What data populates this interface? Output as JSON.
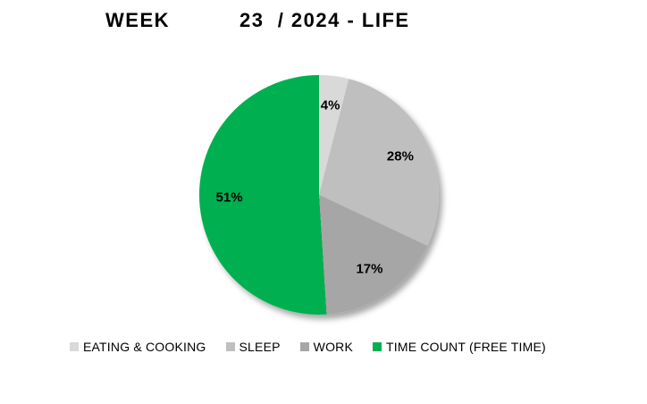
{
  "title": {
    "left": "WEEK",
    "right": "23  / 2024 - LIFE"
  },
  "colors": {
    "background": "#FFFFFF",
    "text": "#000000"
  },
  "chart_data": {
    "type": "pie",
    "title": "WEEK 23 / 2024 - LIFE",
    "start_angle_deg": 0,
    "direction": "clockwise",
    "legend_position": "bottom",
    "slices": [
      {
        "label": "EATING & COOKING",
        "value": 4,
        "percent_label": "4%",
        "color": "#D9D9D9"
      },
      {
        "label": "SLEEP",
        "value": 28,
        "percent_label": "28%",
        "color": "#BFBFBF"
      },
      {
        "label": "WORK",
        "value": 17,
        "percent_label": "17%",
        "color": "#A6A6A6"
      },
      {
        "label": "TIME COUNT (FREE TIME)",
        "value": 51,
        "percent_label": "51%",
        "color": "#00B050"
      }
    ]
  }
}
